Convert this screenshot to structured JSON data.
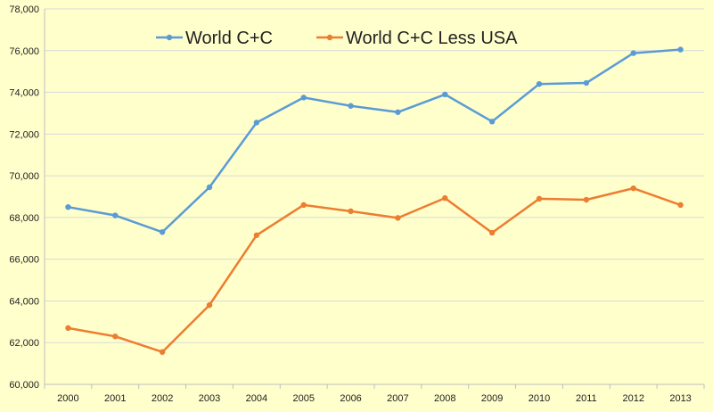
{
  "chart_data": {
    "type": "line",
    "title": "",
    "xlabel": "",
    "ylabel": "",
    "x": [
      "2000",
      "2001",
      "2002",
      "2003",
      "2004",
      "2005",
      "2006",
      "2007",
      "2008",
      "2009",
      "2010",
      "2011",
      "2012",
      "2013"
    ],
    "ylim": [
      60000,
      78000
    ],
    "yticks": [
      60000,
      62000,
      64000,
      66000,
      68000,
      70000,
      72000,
      74000,
      76000,
      78000
    ],
    "ytick_labels": [
      "60,000",
      "62,000",
      "64,000",
      "66,000",
      "68,000",
      "70,000",
      "72,000",
      "74,000",
      "76,000",
      "78,000"
    ],
    "grid": true,
    "legend_position": "top",
    "series": [
      {
        "name": "World C+C",
        "color": "#5B9BD5",
        "values": [
          68500,
          68100,
          67300,
          69450,
          72550,
          73750,
          73350,
          73050,
          73900,
          72600,
          74400,
          74450,
          75880,
          76050
        ]
      },
      {
        "name": "World C+C Less USA",
        "color": "#ED7D31",
        "values": [
          62700,
          62300,
          61550,
          63800,
          67150,
          68600,
          68300,
          67980,
          68930,
          67270,
          68900,
          68850,
          69400,
          68600
        ]
      }
    ]
  }
}
